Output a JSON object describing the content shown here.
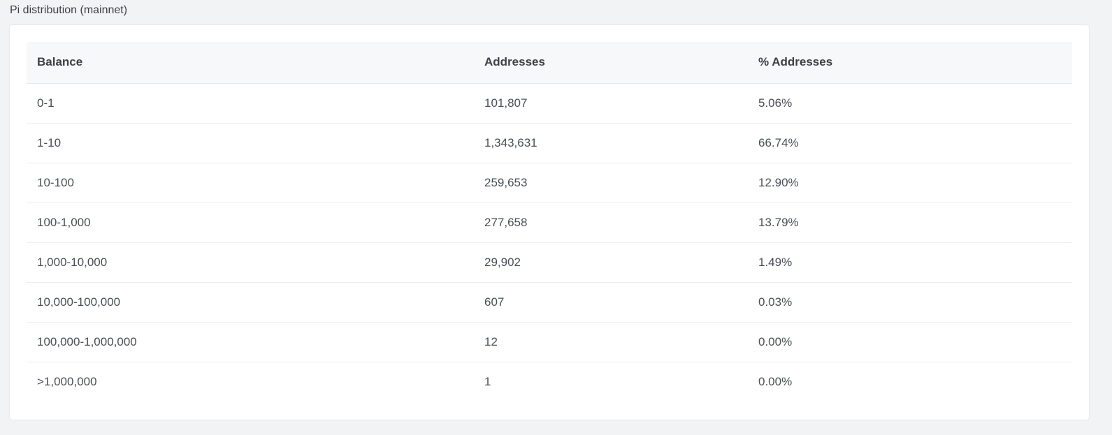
{
  "section": {
    "title": "Pi distribution (mainnet)"
  },
  "table": {
    "columns": [
      "Balance",
      "Addresses",
      "% Addresses"
    ],
    "rows": [
      {
        "balance": "0-1",
        "addresses": "101,807",
        "percent": "5.06%"
      },
      {
        "balance": "1-10",
        "addresses": "1,343,631",
        "percent": "66.74%"
      },
      {
        "balance": "10-100",
        "addresses": "259,653",
        "percent": "12.90%"
      },
      {
        "balance": "100-1,000",
        "addresses": "277,658",
        "percent": "13.79%"
      },
      {
        "balance": "1,000-10,000",
        "addresses": "29,902",
        "percent": "1.49%"
      },
      {
        "balance": "10,000-100,000",
        "addresses": "607",
        "percent": "0.03%"
      },
      {
        "balance": "100,000-1,000,000",
        "addresses": "12",
        "percent": "0.00%"
      },
      {
        "balance": ">1,000,000",
        "addresses": "1",
        "percent": "0.00%"
      }
    ]
  }
}
